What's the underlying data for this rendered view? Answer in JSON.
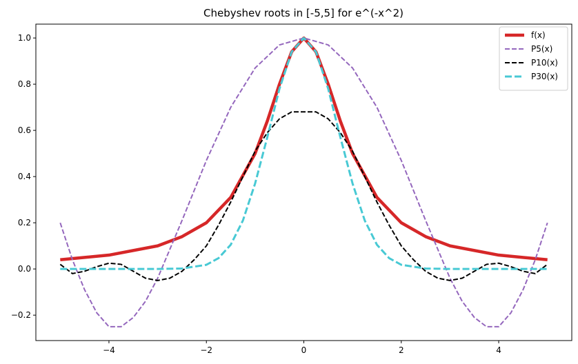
{
  "chart_data": {
    "type": "line",
    "title": "Chebyshev roots in [-5,5] for e^(-x^2)",
    "xlabel": "",
    "ylabel": "",
    "xlim": [
      -5.5,
      5.5
    ],
    "ylim": [
      -0.31,
      1.06
    ],
    "x_ticks": [
      -4,
      -2,
      0,
      2,
      4
    ],
    "x_tick_labels": [
      "−4",
      "−2",
      "0",
      "2",
      "4"
    ],
    "y_ticks": [
      -0.2,
      0.0,
      0.2,
      0.4,
      0.6,
      0.8,
      1.0
    ],
    "y_tick_labels": [
      "−0.2",
      "0.0",
      "0.2",
      "0.4",
      "0.6",
      "0.8",
      "1.0"
    ],
    "grid": false,
    "legend_position": "top-right",
    "series": [
      {
        "name": "f(x)",
        "color": "#d62728",
        "style": "solid",
        "x": [
          -5,
          -4,
          -3,
          -2.5,
          -2,
          -1.5,
          -1,
          -0.75,
          -0.5,
          -0.25,
          0,
          0.25,
          0.5,
          0.75,
          1,
          1.5,
          2,
          2.5,
          3,
          4,
          5
        ],
        "values": [
          0.04,
          0.06,
          0.1,
          0.14,
          0.2,
          0.31,
          0.5,
          0.64,
          0.8,
          0.94,
          1.0,
          0.94,
          0.8,
          0.64,
          0.5,
          0.31,
          0.2,
          0.14,
          0.1,
          0.06,
          0.04
        ]
      },
      {
        "name": "P5(x)",
        "color": "#9467bd",
        "style": "dashed",
        "x": [
          -5,
          -4.75,
          -4.5,
          -4.25,
          -4,
          -3.75,
          -3.5,
          -3.25,
          -3,
          -2.5,
          -2,
          -1.5,
          -1,
          -0.5,
          0,
          0.5,
          1,
          1.5,
          2,
          2.5,
          3,
          3.25,
          3.5,
          3.75,
          4,
          4.25,
          4.5,
          4.75,
          5
        ],
        "values": [
          0.2,
          0.04,
          -0.09,
          -0.19,
          -0.25,
          -0.25,
          -0.21,
          -0.14,
          -0.04,
          0.21,
          0.47,
          0.7,
          0.87,
          0.97,
          1.0,
          0.97,
          0.87,
          0.7,
          0.47,
          0.21,
          -0.04,
          -0.14,
          -0.21,
          -0.25,
          -0.25,
          -0.19,
          -0.09,
          0.04,
          0.2
        ]
      },
      {
        "name": "P10(x)",
        "color": "#000000",
        "style": "dashed",
        "x": [
          -5,
          -4.75,
          -4.5,
          -4.25,
          -4,
          -3.75,
          -3.5,
          -3.25,
          -3,
          -2.75,
          -2.5,
          -2.25,
          -2,
          -1.75,
          -1.5,
          -1.25,
          -1,
          -0.75,
          -0.5,
          -0.25,
          0,
          0.25,
          0.5,
          0.75,
          1,
          1.25,
          1.5,
          1.75,
          2,
          2.25,
          2.5,
          2.75,
          3,
          3.25,
          3.5,
          3.75,
          4,
          4.25,
          4.5,
          4.75,
          5
        ],
        "values": [
          0.02,
          -0.02,
          -0.01,
          0.01,
          0.025,
          0.02,
          -0.01,
          -0.04,
          -0.05,
          -0.04,
          -0.01,
          0.04,
          0.1,
          0.19,
          0.29,
          0.4,
          0.51,
          0.59,
          0.65,
          0.68,
          0.68,
          0.68,
          0.65,
          0.59,
          0.51,
          0.4,
          0.29,
          0.19,
          0.1,
          0.04,
          -0.01,
          -0.04,
          -0.05,
          -0.04,
          -0.01,
          0.02,
          0.025,
          0.01,
          -0.01,
          -0.02,
          0.02
        ]
      },
      {
        "name": "P30(x)",
        "color": "#48c9d4",
        "style": "dashed",
        "x": [
          -5,
          -4,
          -3,
          -2.5,
          -2,
          -1.75,
          -1.5,
          -1.25,
          -1,
          -0.75,
          -0.5,
          -0.25,
          0,
          0.25,
          0.5,
          0.75,
          1,
          1.25,
          1.5,
          1.75,
          2,
          2.5,
          3,
          4,
          5
        ],
        "values": [
          0.0,
          0.0,
          0.0,
          0.002,
          0.018,
          0.047,
          0.105,
          0.21,
          0.37,
          0.57,
          0.78,
          0.94,
          1.0,
          0.94,
          0.78,
          0.57,
          0.37,
          0.21,
          0.105,
          0.047,
          0.018,
          0.002,
          0.0,
          0.0,
          0.0
        ]
      }
    ]
  }
}
